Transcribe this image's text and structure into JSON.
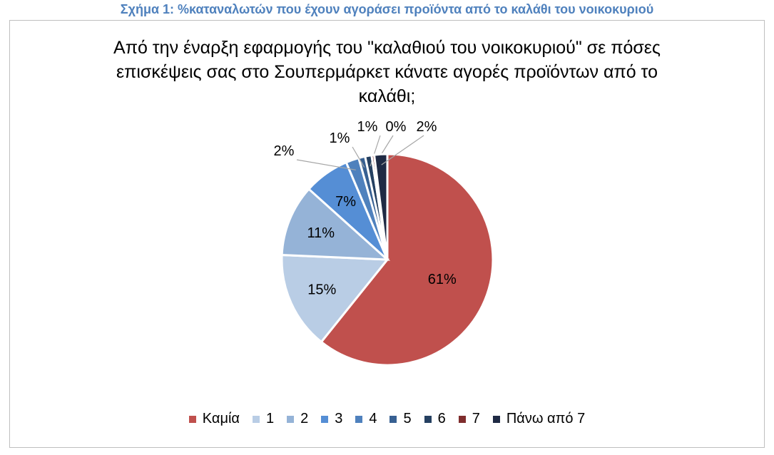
{
  "caption": "Σχήμα 1: %καταναλωτών που έχουν αγοράσει προϊόντα από το καλάθι του νοικοκυριού",
  "chart_data": {
    "type": "pie",
    "title_lines": [
      "Από την έναρξη εφαρμογής του \"καλαθιού του νοικοκυριού\" σε πόσες",
      "επισκέψεις σας στο Σουπερμάρκετ κάνατε αγορές προϊόντων από το",
      "καλάθι;"
    ],
    "categories": [
      "Καμία",
      "1",
      "2",
      "3",
      "4",
      "5",
      "6",
      "7",
      "Πάνω από 7"
    ],
    "values": [
      61,
      15,
      11,
      7,
      2,
      1,
      1,
      0.4,
      2
    ],
    "labels": [
      "61%",
      "15%",
      "11%",
      "7%",
      "2%",
      "1%",
      "1%",
      "0%",
      "2%"
    ],
    "colors": [
      "#c0504d",
      "#b9cde5",
      "#95b3d7",
      "#558ed5",
      "#4f81bd",
      "#376092",
      "#254061",
      "#7f2d2d",
      "#1f2a44"
    ],
    "legend_position": "bottom"
  }
}
